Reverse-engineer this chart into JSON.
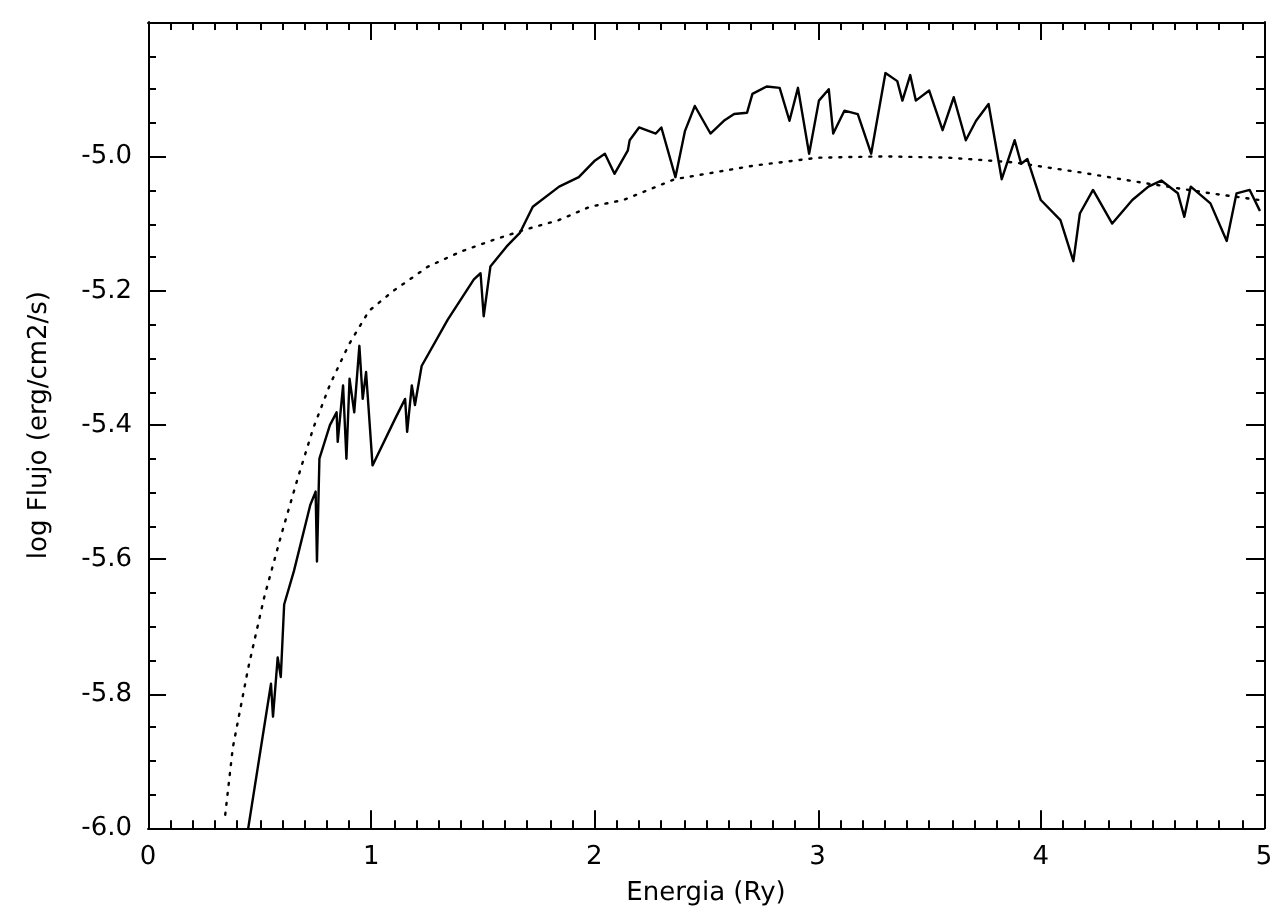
{
  "chart_data": {
    "type": "line",
    "xlabel": "Energia (Ry)",
    "ylabel": "log Flujo (erg/cm2/s)",
    "xlim": [
      0,
      5
    ],
    "ylim": [
      -6.0,
      -4.8
    ],
    "grid": false,
    "xticks": [
      0,
      {
        "value": 0.1,
        "label": null
      },
      {
        "value": 0.2,
        "label": null
      },
      {
        "value": 0.3,
        "label": null
      },
      {
        "value": 0.4,
        "label": null
      },
      {
        "value": 0.5,
        "label": null
      },
      {
        "value": 0.6,
        "label": null
      },
      {
        "value": 0.7,
        "label": null
      },
      {
        "value": 0.8,
        "label": null
      },
      {
        "value": 0.9,
        "label": null
      },
      1,
      {
        "value": 1.1,
        "label": null
      },
      {
        "value": 1.2,
        "label": null
      },
      {
        "value": 1.3,
        "label": null
      },
      {
        "value": 1.4,
        "label": null
      },
      {
        "value": 1.5,
        "label": null
      },
      {
        "value": 1.6,
        "label": null
      },
      {
        "value": 1.7,
        "label": null
      },
      {
        "value": 1.8,
        "label": null
      },
      {
        "value": 1.9,
        "label": null
      },
      2,
      {
        "value": 2.1,
        "label": null
      },
      {
        "value": 2.2,
        "label": null
      },
      {
        "value": 2.3,
        "label": null
      },
      {
        "value": 2.4,
        "label": null
      },
      {
        "value": 2.5,
        "label": null
      },
      {
        "value": 2.6,
        "label": null
      },
      {
        "value": 2.7,
        "label": null
      },
      {
        "value": 2.8,
        "label": null
      },
      {
        "value": 2.9,
        "label": null
      },
      3,
      {
        "value": 3.1,
        "label": null
      },
      {
        "value": 3.2,
        "label": null
      },
      {
        "value": 3.3,
        "label": null
      },
      {
        "value": 3.4,
        "label": null
      },
      {
        "value": 3.5,
        "label": null
      },
      {
        "value": 3.6,
        "label": null
      },
      {
        "value": 3.7,
        "label": null
      },
      {
        "value": 3.8,
        "label": null
      },
      {
        "value": 3.9,
        "label": null
      },
      4,
      {
        "value": 4.1,
        "label": null
      },
      {
        "value": 4.2,
        "label": null
      },
      {
        "value": 4.3,
        "label": null
      },
      {
        "value": 4.4,
        "label": null
      },
      {
        "value": 4.5,
        "label": null
      },
      {
        "value": 4.6,
        "label": null
      },
      {
        "value": 4.7,
        "label": null
      },
      {
        "value": 4.8,
        "label": null
      },
      {
        "value": 4.9,
        "label": null
      },
      5
    ],
    "yticks": [
      {
        "value": -6.0,
        "label": "-6.0"
      },
      {
        "value": -5.95,
        "label": null
      },
      {
        "value": -5.9,
        "label": null
      },
      {
        "value": -5.85,
        "label": null
      },
      {
        "value": -5.8,
        "label": "-5.8"
      },
      {
        "value": -5.75,
        "label": null
      },
      {
        "value": -5.7,
        "label": null
      },
      {
        "value": -5.65,
        "label": null
      },
      {
        "value": -5.6,
        "label": "-5.6"
      },
      {
        "value": -5.55,
        "label": null
      },
      {
        "value": -5.5,
        "label": null
      },
      {
        "value": -5.45,
        "label": null
      },
      {
        "value": -5.4,
        "label": "-5.4"
      },
      {
        "value": -5.35,
        "label": null
      },
      {
        "value": -5.3,
        "label": null
      },
      {
        "value": -5.25,
        "label": null
      },
      {
        "value": -5.2,
        "label": "-5.2"
      },
      {
        "value": -5.15,
        "label": null
      },
      {
        "value": -5.1,
        "label": null
      },
      {
        "value": -5.05,
        "label": null
      },
      {
        "value": -5.0,
        "label": "-5.0"
      },
      {
        "value": -4.95,
        "label": null
      },
      {
        "value": -4.9,
        "label": null
      },
      {
        "value": -4.85,
        "label": null
      }
    ],
    "series": [
      {
        "color": "#000000",
        "line_style": "solid",
        "x": [
          0.449,
          0.551,
          0.56,
          0.581,
          0.595,
          0.61,
          0.654,
          0.727,
          0.751,
          0.757,
          0.768,
          0.815,
          0.845,
          0.85,
          0.874,
          0.889,
          0.903,
          0.924,
          0.947,
          0.962,
          0.977,
          1.006,
          1.108,
          1.152,
          1.161,
          1.182,
          1.196,
          1.226,
          1.343,
          1.46,
          1.49,
          1.504,
          1.534,
          1.607,
          1.666,
          1.724,
          1.842,
          1.93,
          2.003,
          2.047,
          2.09,
          2.15,
          2.158,
          2.2,
          2.275,
          2.3,
          2.363,
          2.406,
          2.45,
          2.52,
          2.58,
          2.626,
          2.684,
          2.708,
          2.772,
          2.83,
          2.874,
          2.912,
          2.962,
          3.006,
          3.05,
          3.07,
          3.12,
          3.18,
          3.24,
          3.304,
          3.357,
          3.38,
          3.415,
          3.44,
          3.5,
          3.56,
          3.61,
          3.664,
          3.71,
          3.766,
          3.825,
          3.883,
          3.912,
          3.94,
          4.0,
          4.088,
          4.146,
          4.175,
          4.234,
          4.32,
          4.41,
          4.482,
          4.54,
          4.614,
          4.643,
          4.672,
          4.76,
          4.833,
          4.877,
          4.936,
          4.98
        ],
        "values": [
          -6.0,
          -5.785,
          -5.834,
          -5.746,
          -5.775,
          -5.667,
          -5.617,
          -5.519,
          -5.499,
          -5.603,
          -5.45,
          -5.4,
          -5.381,
          -5.425,
          -5.341,
          -5.45,
          -5.331,
          -5.381,
          -5.282,
          -5.361,
          -5.321,
          -5.46,
          -5.39,
          -5.361,
          -5.41,
          -5.341,
          -5.37,
          -5.312,
          -5.243,
          -5.183,
          -5.174,
          -5.238,
          -5.164,
          -5.134,
          -5.114,
          -5.075,
          -5.045,
          -5.031,
          -5.006,
          -4.996,
          -5.026,
          -4.991,
          -4.976,
          -4.957,
          -4.966,
          -4.957,
          -5.031,
          -4.962,
          -4.925,
          -4.966,
          -4.947,
          -4.937,
          -4.935,
          -4.907,
          -4.896,
          -4.898,
          -4.947,
          -4.898,
          -4.996,
          -4.917,
          -4.9,
          -4.966,
          -4.932,
          -4.937,
          -4.996,
          -4.876,
          -4.888,
          -4.917,
          -4.879,
          -4.917,
          -4.902,
          -4.961,
          -4.912,
          -4.976,
          -4.947,
          -4.922,
          -5.034,
          -4.976,
          -5.011,
          -5.004,
          -5.065,
          -5.095,
          -5.156,
          -5.085,
          -5.05,
          -5.1,
          -5.065,
          -5.045,
          -5.036,
          -5.055,
          -5.09,
          -5.045,
          -5.07,
          -5.126,
          -5.055,
          -5.05,
          -5.08
        ]
      },
      {
        "color": "#000000",
        "line_style": "dotted",
        "x": [
          0.346,
          0.38,
          0.45,
          0.52,
          0.6,
          0.67,
          0.74,
          0.815,
          0.9,
          0.99,
          1.1,
          1.255,
          1.4,
          1.55,
          1.7,
          1.84,
          1.98,
          2.13,
          2.36,
          2.71,
          3.0,
          3.3,
          3.59,
          3.88,
          4.18,
          4.47,
          4.76,
          4.98
        ],
        "values": [
          -5.98,
          -5.88,
          -5.76,
          -5.657,
          -5.56,
          -5.48,
          -5.405,
          -5.34,
          -5.28,
          -5.23,
          -5.2,
          -5.164,
          -5.142,
          -5.124,
          -5.108,
          -5.095,
          -5.075,
          -5.065,
          -5.034,
          -5.014,
          -5.002,
          -5.0,
          -5.002,
          -5.009,
          -5.024,
          -5.04,
          -5.055,
          -5.065
        ]
      }
    ]
  }
}
